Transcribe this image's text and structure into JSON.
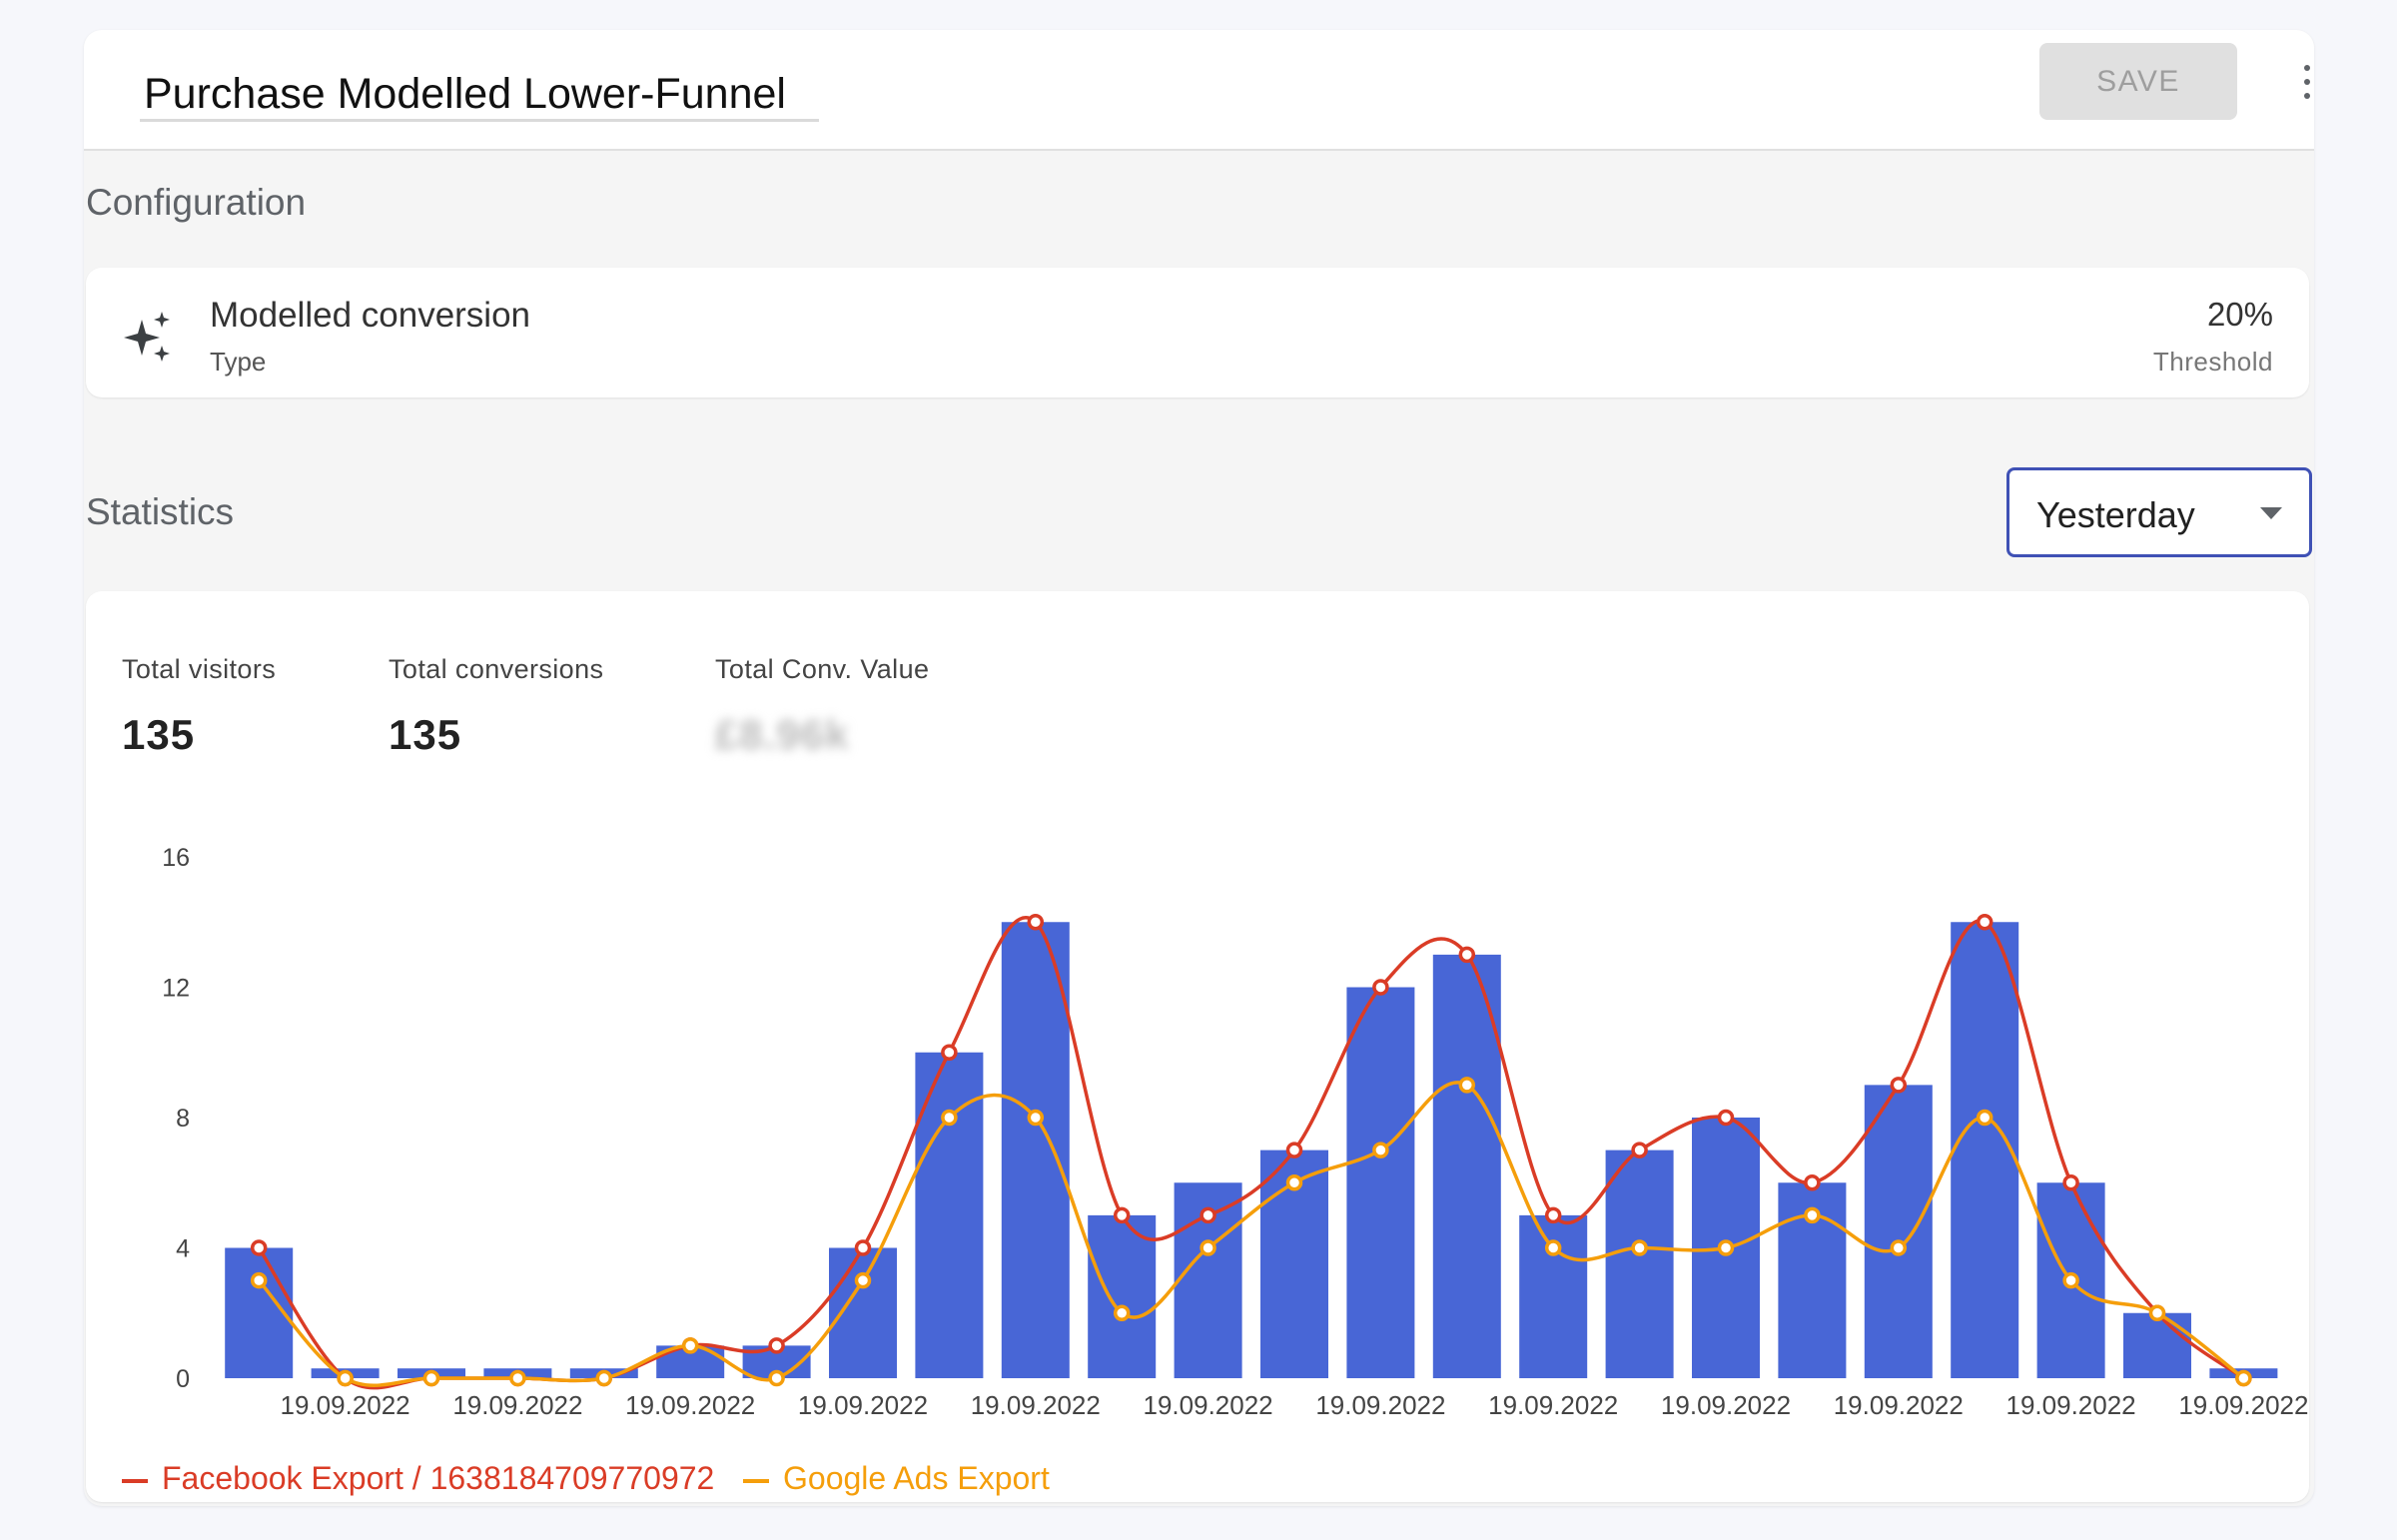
{
  "header": {
    "title": "Purchase Modelled Lower-Funnel",
    "save_label": "SAVE"
  },
  "configuration": {
    "section_title": "Configuration",
    "type_value": "Modelled conversion",
    "type_label": "Type",
    "threshold_value": "20%",
    "threshold_label": "Threshold"
  },
  "statistics": {
    "section_title": "Statistics",
    "period_select": "Yesterday",
    "kpis": [
      {
        "label": "Total visitors",
        "value": "135"
      },
      {
        "label": "Total conversions",
        "value": "135"
      },
      {
        "label": "Total Conv. Value",
        "value": "£8.96k"
      }
    ]
  },
  "colors": {
    "bars": "#4866d6",
    "facebook": "#da3c26",
    "google": "#f59e0b",
    "save_bg": "#e0e0e0",
    "select_border": "#3f51b5"
  },
  "chart_data": {
    "type": "bar",
    "categories": [
      "",
      "19.09.2022",
      "",
      "19.09.2022",
      "",
      "19.09.2022",
      "",
      "19.09.2022",
      "",
      "19.09.2022",
      "",
      "19.09.2022",
      "",
      "19.09.2022",
      "",
      "19.09.2022",
      "",
      "19.09.2022",
      "",
      "19.09.2022",
      "",
      "19.09.2022",
      "",
      "19.09.2022"
    ],
    "x_tick_labels": [
      "19.09.2022",
      "19.09.2022",
      "19.09.2022",
      "19.09.2022",
      "19.09.2022",
      "19.09.2022",
      "19.09.2022",
      "19.09.2022"
    ],
    "values": [
      4,
      0.3,
      0.3,
      0.3,
      0.3,
      1,
      1,
      4,
      10,
      14,
      5,
      6,
      7,
      12,
      13,
      5,
      7,
      8,
      6,
      9,
      14,
      6,
      2,
      0.3
    ],
    "series": [
      {
        "name": "Facebook Export / 1638184709770972",
        "values": [
          4,
          0,
          0,
          0,
          0,
          1,
          1,
          4,
          10,
          14,
          5,
          5,
          7,
          12,
          13,
          5,
          7,
          8,
          6,
          9,
          14,
          6,
          2,
          0
        ]
      },
      {
        "name": "Google Ads Export",
        "values": [
          3,
          0,
          0,
          0,
          0,
          1,
          0,
          3,
          8,
          8,
          2,
          4,
          6,
          7,
          9,
          4,
          4,
          4,
          5,
          4,
          8,
          3,
          2,
          0
        ]
      }
    ],
    "y_ticks": [
      0,
      4,
      8,
      12,
      16
    ],
    "ylim": [
      0,
      16
    ],
    "title": "",
    "xlabel": "",
    "ylabel": "",
    "legend_position": "bottom-left",
    "grid": false
  }
}
